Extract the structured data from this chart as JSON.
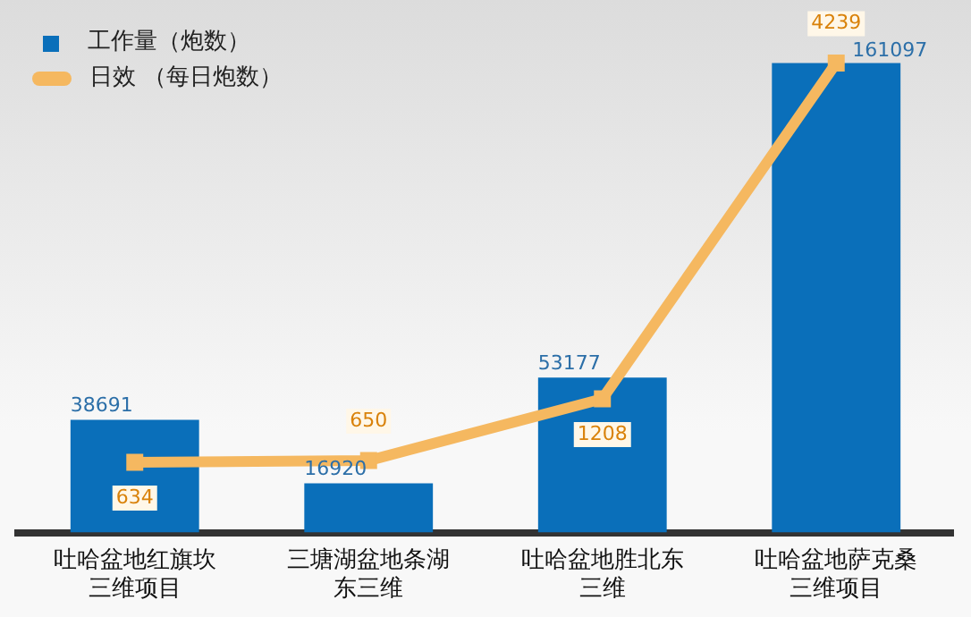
{
  "chart_data": {
    "type": "bar",
    "categories": [
      "吐哈盆地红旗坎三维项目",
      "三塘湖盆地条湖东三维",
      "吐哈盆地胜北东三维",
      "吐哈盆地萨克桑三维项目"
    ],
    "series": [
      {
        "name": "工作量（炮数）",
        "color": "#0a6fba",
        "values": [
          38691,
          16920,
          53177,
          161097
        ]
      },
      {
        "name": "日效 （每日炮数）",
        "type": "line",
        "axis": "y2",
        "color": "#f5b860",
        "values": [
          634,
          650,
          1208,
          4239
        ]
      }
    ],
    "marker": "square",
    "data_labels": true,
    "legend": "top left",
    "grid": false,
    "tick_labels": "x"
  }
}
